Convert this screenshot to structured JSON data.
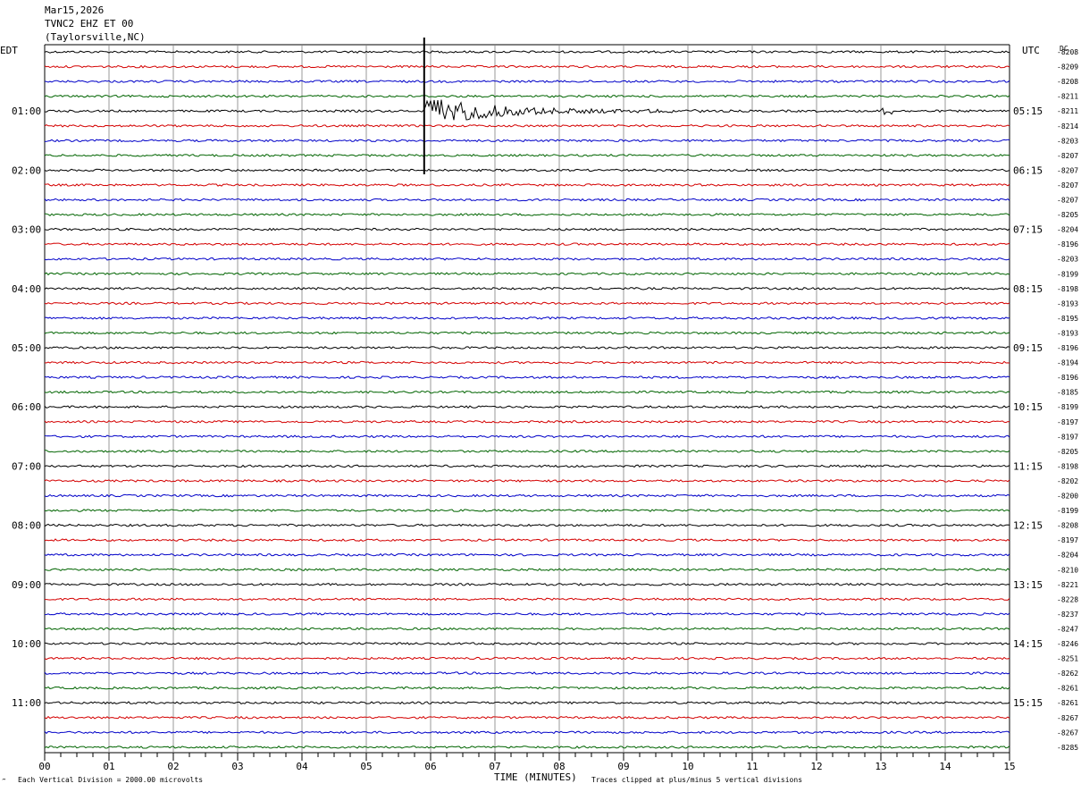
{
  "header": {
    "date": "Mar15,2026",
    "station": "TVNC2 EHZ ET 00",
    "location": "(Taylorsville,NC)"
  },
  "axes": {
    "left_tz": "EDT",
    "right_tz": "UTC",
    "dc_label": "DC",
    "xlabel": "TIME (MINUTES)",
    "footer_left": "Each Vertical Division = 2000.00 microvolts",
    "footer_right": "Traces clipped at plus/minus 5 vertical divisions",
    "corner_mark": "‴"
  },
  "colors": {
    "cycle": [
      "#000000",
      "#d40000",
      "#0000c8",
      "#006400"
    ],
    "grid": "#808080"
  },
  "chart_data": {
    "type": "line",
    "title": "TVNC2 EHZ ET 00 (Taylorsville,NC) Mar15,2026",
    "xlabel": "TIME (MINUTES)",
    "xlim": [
      0,
      15
    ],
    "x_ticks": [
      "00",
      "01",
      "02",
      "03",
      "04",
      "05",
      "06",
      "07",
      "08",
      "09",
      "10",
      "11",
      "12",
      "13",
      "14",
      "15"
    ],
    "trace_count": 48,
    "minutes_per_trace": 15,
    "left_time_labels": [
      "01:00",
      "02:00",
      "03:00",
      "04:00",
      "05:00",
      "06:00",
      "07:00",
      "08:00",
      "09:00",
      "10:00",
      "11:00"
    ],
    "right_time_labels": [
      "05:15",
      "06:15",
      "07:15",
      "08:15",
      "09:15",
      "10:15",
      "11:15",
      "12:15",
      "13:15",
      "14:15",
      "15:15"
    ],
    "dc_offsets": [
      "-8208",
      "-8209",
      "-8208",
      "-8211",
      "-8211",
      "-8214",
      "-8203",
      "-8207",
      "-8207",
      "-8207",
      "-8207",
      "-8205",
      "-8204",
      "-8196",
      "-8203",
      "-8199",
      "-8198",
      "-8193",
      "-8195",
      "-8193",
      "-8196",
      "-8194",
      "-8196",
      "-8185",
      "-8199",
      "-8197",
      "-8197",
      "-8205",
      "-8198",
      "-8202",
      "-8200",
      "-8199",
      "-8208",
      "-8197",
      "-8204",
      "-8210",
      "-8221",
      "-8228",
      "-8237",
      "-8247",
      "-8246",
      "-8251",
      "-8262",
      "-8261",
      "-8261",
      "-8267",
      "-8267",
      "-8285"
    ],
    "events": [
      {
        "trace_index": 4,
        "onset_minute": 5.9,
        "description_value": "clipped",
        "decay_end_minute": 10.2
      },
      {
        "trace_index": 4,
        "onset_minute": 13.1,
        "description_value": "small"
      }
    ],
    "units": "microvolts",
    "vertical_division_microvolts": 2000.0,
    "clip_divisions": 5
  }
}
